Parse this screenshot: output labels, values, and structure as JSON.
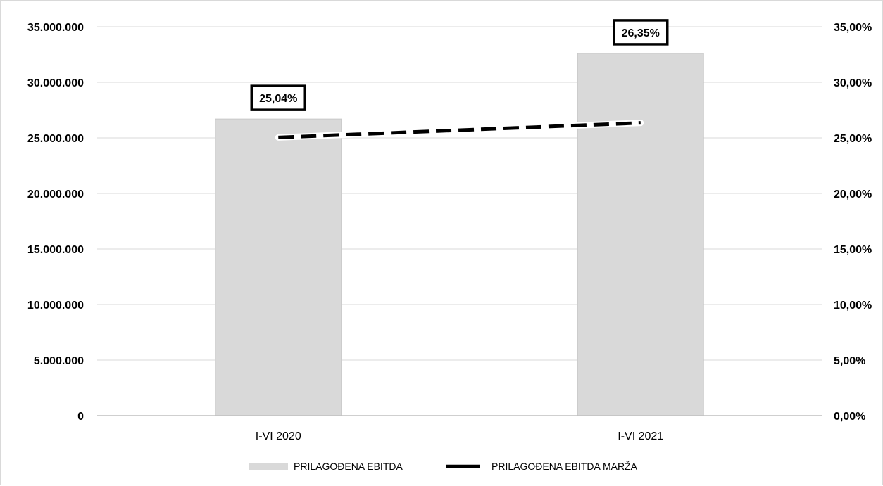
{
  "chart_data": {
    "type": "bar",
    "categories": [
      "I-VI 2020",
      "I-VI 2021"
    ],
    "series": [
      {
        "name": "PRILAGOĐENA EBITDA",
        "type": "bar",
        "axis": "left",
        "values": [
          26700000,
          32600000
        ],
        "color": "#d9d9d9"
      },
      {
        "name": "PRILAGOĐENA EBITDA MARŽA",
        "type": "line",
        "axis": "right",
        "values": [
          25.04,
          26.35
        ],
        "color": "#000000",
        "line_style": "dashed"
      }
    ],
    "data_labels": [
      "25,04%",
      "26,35%"
    ],
    "y_left": {
      "ylim": [
        0,
        35000000
      ],
      "ticks": [
        0,
        5000000,
        10000000,
        15000000,
        20000000,
        25000000,
        30000000,
        35000000
      ],
      "tick_labels": [
        "0",
        "5.000.000",
        "10.000.000",
        "15.000.000",
        "20.000.000",
        "25.000.000",
        "30.000.000",
        "35.000.000"
      ]
    },
    "y_right": {
      "ylim": [
        0,
        35
      ],
      "ticks": [
        0,
        5,
        10,
        15,
        20,
        25,
        30,
        35
      ],
      "tick_labels": [
        "0,00%",
        "5,00%",
        "10,00%",
        "15,00%",
        "20,00%",
        "25,00%",
        "30,00%",
        "35,00%"
      ]
    },
    "grid": true,
    "legend_position": "bottom",
    "title": "",
    "xlabel": "",
    "ylabel": ""
  }
}
